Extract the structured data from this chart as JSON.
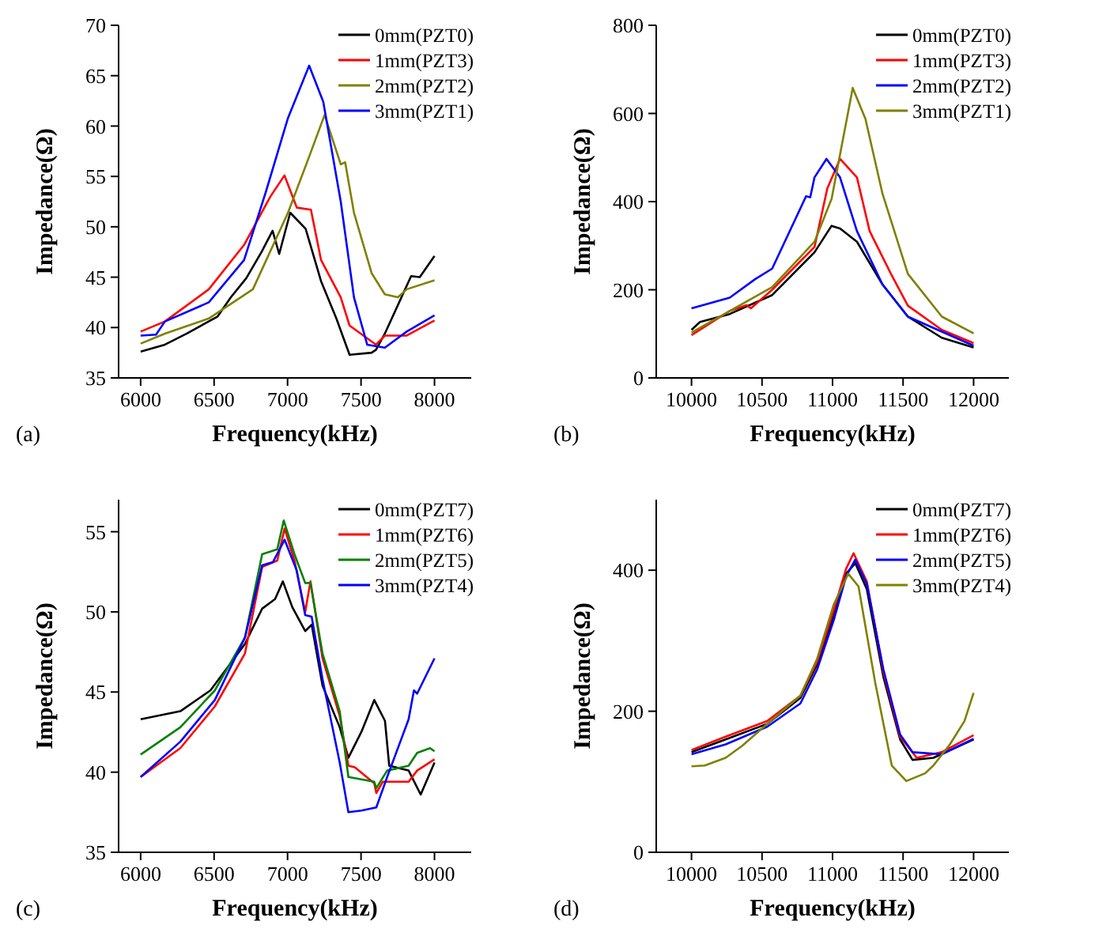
{
  "chart_data": [
    {
      "type": "line",
      "xlabel": "Frequency(kHz)",
      "ylabel": "Impedance(Ω)",
      "annotations": [
        "(a)"
      ],
      "xlim": [
        5850,
        8250
      ],
      "ylim": [
        35,
        70
      ],
      "xticks": [
        6000,
        6500,
        7000,
        7500,
        8000
      ],
      "yticks": [
        35,
        40,
        45,
        50,
        55,
        60,
        65,
        70
      ],
      "legend": "top right",
      "grid": false,
      "line_style": "solid",
      "series": [
        {
          "name": "0mm(PZT0)",
          "color": "#000000",
          "x": [
            6000,
            6165,
            6314,
            6524,
            6614,
            6719,
            6823,
            6898,
            6943,
            7018,
            7123,
            7228,
            7332,
            7422,
            7572,
            7602,
            7662,
            7841,
            7900,
            8000
          ],
          "values": [
            37.6,
            38.3,
            39.4,
            41.1,
            43.0,
            44.9,
            47.5,
            49.6,
            47.3,
            51.4,
            49.8,
            44.6,
            40.9,
            37.3,
            37.5,
            37.8,
            39.4,
            45.1,
            45.0,
            47.1
          ]
        },
        {
          "name": "1mm(PZT3)",
          "color": "#ff0000",
          "x": [
            6000,
            6165,
            6464,
            6704,
            6883,
            6979,
            7063,
            7159,
            7228,
            7362,
            7422,
            7602,
            7662,
            7811,
            8000
          ],
          "values": [
            39.6,
            40.6,
            43.8,
            48.2,
            53.0,
            55.1,
            51.9,
            51.7,
            46.7,
            43.0,
            40.2,
            38.3,
            39.2,
            39.2,
            40.7
          ]
        },
        {
          "name": "2mm(PZT2)",
          "color": "#808000",
          "x": [
            6000,
            6165,
            6464,
            6764,
            7003,
            7153,
            7252,
            7362,
            7392,
            7452,
            7572,
            7662,
            7751,
            7811,
            8000
          ],
          "values": [
            38.4,
            39.4,
            40.9,
            43.8,
            51.4,
            57.2,
            61.1,
            56.2,
            56.4,
            51.4,
            45.4,
            43.3,
            43.0,
            43.8,
            44.7
          ]
        },
        {
          "name": "3mm(PZT1)",
          "color": "#0000ff",
          "x": [
            6000,
            6105,
            6165,
            6464,
            6704,
            6853,
            7003,
            7147,
            7243,
            7362,
            7452,
            7542,
            7662,
            7811,
            8000
          ],
          "values": [
            39.2,
            39.3,
            40.6,
            42.5,
            46.7,
            53.5,
            60.8,
            66.0,
            62.4,
            52.5,
            43.0,
            38.3,
            38.0,
            39.6,
            41.2
          ]
        }
      ]
    },
    {
      "type": "line",
      "xlabel": "Frequency(kHz)",
      "ylabel": "Impedance(Ω)",
      "annotations": [
        "(b)"
      ],
      "xlim": [
        9750,
        12250
      ],
      "ylim": [
        0,
        800
      ],
      "xticks": [
        10000,
        10500,
        11000,
        11500,
        12000
      ],
      "yticks": [
        0,
        200,
        400,
        600,
        800
      ],
      "legend": "top right",
      "grid": false,
      "line_style": "solid",
      "series": [
        {
          "name": "0mm(PZT0)",
          "color": "#000000",
          "x": [
            10000,
            10060,
            10271,
            10572,
            10872,
            10993,
            11053,
            11173,
            11354,
            11534,
            11775,
            12000
          ],
          "values": [
            109,
            127,
            145,
            188,
            285,
            345,
            339,
            309,
            212,
            139,
            91,
            69
          ]
        },
        {
          "name": "1mm(PZT3)",
          "color": "#ff0000",
          "x": [
            10000,
            10271,
            10391,
            10421,
            10572,
            10872,
            10963,
            11053,
            11173,
            11263,
            11414,
            11534,
            11775,
            12000
          ],
          "values": [
            97,
            152,
            165,
            158,
            200,
            297,
            430,
            497,
            455,
            333,
            236,
            164,
            109,
            79
          ]
        },
        {
          "name": "2mm(PZT2)",
          "color": "#0000ff",
          "x": [
            10000,
            10271,
            10451,
            10572,
            10812,
            10842,
            10872,
            10957,
            11053,
            11173,
            11354,
            11534,
            12000
          ],
          "values": [
            158,
            182,
            224,
            248,
            412,
            410,
            455,
            497,
            455,
            333,
            212,
            139,
            73
          ]
        },
        {
          "name": "3mm(PZT1)",
          "color": "#808000",
          "x": [
            10000,
            10271,
            10572,
            10872,
            10993,
            11143,
            11233,
            11354,
            11534,
            11775,
            12000
          ],
          "values": [
            103,
            152,
            206,
            309,
            406,
            658,
            588,
            418,
            236,
            139,
            101
          ]
        }
      ]
    },
    {
      "type": "line",
      "xlabel": "Frequency(kHz)",
      "ylabel": "Impedance(Ω)",
      "annotations": [
        "(c)"
      ],
      "xlim": [
        5850,
        8250
      ],
      "ylim": [
        35,
        57
      ],
      "xticks": [
        6000,
        6500,
        7000,
        7500,
        8000
      ],
      "yticks": [
        35,
        40,
        45,
        50,
        55
      ],
      "legend": "top right",
      "grid": false,
      "line_style": "solid",
      "series": [
        {
          "name": "0mm(PZT7)",
          "color": "#000000",
          "x": [
            6000,
            6270,
            6475,
            6710,
            6827,
            6915,
            6968,
            7032,
            7120,
            7164,
            7238,
            7355,
            7414,
            7502,
            7590,
            7663,
            7692,
            7824,
            7906,
            8000
          ],
          "values": [
            43.3,
            43.8,
            45.1,
            48.0,
            50.2,
            50.8,
            51.9,
            50.3,
            48.8,
            49.2,
            45.4,
            42.8,
            40.9,
            42.5,
            44.5,
            43.2,
            40.4,
            40.1,
            38.6,
            40.6
          ]
        },
        {
          "name": "1mm(PZT6)",
          "color": "#ff0000",
          "x": [
            6000,
            6270,
            6505,
            6710,
            6827,
            6930,
            6980,
            7047,
            7120,
            7156,
            7238,
            7355,
            7414,
            7458,
            7590,
            7604,
            7648,
            7824,
            7882,
            8000
          ],
          "values": [
            39.7,
            41.5,
            44.1,
            47.4,
            52.8,
            53.2,
            55.2,
            53.2,
            50.0,
            51.9,
            47.1,
            43.5,
            40.4,
            40.3,
            39.3,
            38.7,
            39.4,
            39.4,
            40.1,
            40.8
          ]
        },
        {
          "name": "2mm(PZT5)",
          "color": "#008000",
          "x": [
            6000,
            6270,
            6505,
            6710,
            6827,
            6930,
            6974,
            7047,
            7120,
            7156,
            7238,
            7355,
            7414,
            7590,
            7604,
            7678,
            7824,
            7882,
            7970,
            8000
          ],
          "values": [
            41.1,
            42.8,
            45.1,
            48.4,
            53.6,
            53.9,
            55.7,
            53.6,
            51.8,
            51.8,
            47.4,
            43.8,
            39.7,
            39.4,
            39.0,
            40.1,
            40.4,
            41.2,
            41.5,
            41.3
          ]
        },
        {
          "name": "3mm(PZT4)",
          "color": "#0000ff",
          "x": [
            6000,
            6270,
            6505,
            6710,
            6827,
            6900,
            6980,
            7062,
            7120,
            7164,
            7238,
            7355,
            7414,
            7502,
            7604,
            7678,
            7824,
            7860,
            7882,
            8000
          ],
          "values": [
            39.7,
            41.9,
            44.5,
            48.4,
            52.9,
            53.1,
            54.5,
            52.6,
            49.8,
            49.7,
            45.8,
            40.6,
            37.5,
            37.6,
            37.8,
            39.7,
            43.3,
            45.1,
            44.9,
            47.1
          ]
        }
      ]
    },
    {
      "type": "line",
      "xlabel": "Frequency(kHz)",
      "ylabel": "Impedance(Ω)",
      "annotations": [
        "(d)"
      ],
      "xlim": [
        9750,
        12250
      ],
      "ylim": [
        0,
        500
      ],
      "xticks": [
        10000,
        10500,
        11000,
        11500,
        12000
      ],
      "yticks": [
        0,
        200,
        400
      ],
      "legend": "top right",
      "grid": false,
      "line_style": "solid",
      "series": [
        {
          "name": "0mm(PZT7)",
          "color": "#000000",
          "x": [
            10000,
            10242,
            10536,
            10772,
            10890,
            11008,
            11096,
            11161,
            11243,
            11361,
            11479,
            11567,
            11715,
            12000
          ],
          "values": [
            142,
            160,
            182,
            219,
            266,
            336,
            395,
            410,
            373,
            248,
            160,
            131,
            134,
            160
          ]
        },
        {
          "name": "1mm(PZT6)",
          "color": "#ff0000",
          "x": [
            10000,
            10242,
            10536,
            10772,
            10890,
            11008,
            11096,
            11149,
            11243,
            11361,
            11479,
            11597,
            11774,
            12000
          ],
          "values": [
            145,
            164,
            186,
            222,
            270,
            343,
            402,
            424,
            384,
            255,
            164,
            134,
            142,
            166
          ]
        },
        {
          "name": "2mm(PZT5)",
          "color": "#0000ff",
          "x": [
            10000,
            10242,
            10536,
            10772,
            10890,
            11008,
            11096,
            11161,
            11243,
            11361,
            11479,
            11567,
            11774,
            12000
          ],
          "values": [
            139,
            153,
            178,
            211,
            259,
            329,
            391,
            415,
            380,
            259,
            167,
            142,
            139,
            161
          ]
        },
        {
          "name": "3mm(PZT4)",
          "color": "#808000",
          "x": [
            10000,
            10094,
            10242,
            10360,
            10536,
            10772,
            10890,
            11008,
            11111,
            11184,
            11302,
            11420,
            11523,
            11656,
            11715,
            11832,
            11935,
            12000
          ],
          "values": [
            122,
            123,
            134,
            151,
            182,
            222,
            274,
            351,
            395,
            377,
            241,
            123,
            101,
            112,
            123,
            153,
            186,
            226
          ]
        }
      ]
    }
  ]
}
